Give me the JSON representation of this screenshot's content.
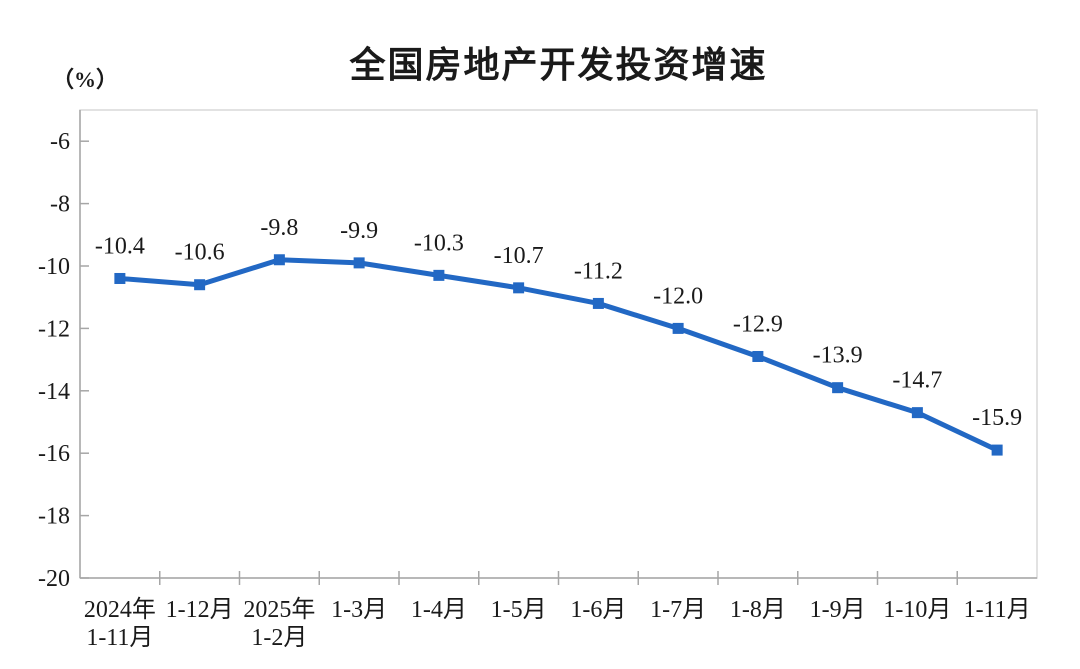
{
  "page": {
    "background": "#ffffff"
  },
  "chart_data": {
    "type": "line",
    "title": "全国房地产开发投资增速",
    "unit_label": "（%）",
    "categories": [
      {
        "line1": "2024年",
        "line2": "1-11月"
      },
      {
        "line1": "1-12月",
        "line2": ""
      },
      {
        "line1": "2025年",
        "line2": "1-2月"
      },
      {
        "line1": "1-3月",
        "line2": ""
      },
      {
        "line1": "1-4月",
        "line2": ""
      },
      {
        "line1": "1-5月",
        "line2": ""
      },
      {
        "line1": "1-6月",
        "line2": ""
      },
      {
        "line1": "1-7月",
        "line2": ""
      },
      {
        "line1": "1-8月",
        "line2": ""
      },
      {
        "line1": "1-9月",
        "line2": ""
      },
      {
        "line1": "1-10月",
        "line2": ""
      },
      {
        "line1": "1-11月",
        "line2": ""
      }
    ],
    "values": [
      -10.4,
      -10.6,
      -9.8,
      -9.9,
      -10.3,
      -10.7,
      -11.2,
      -12.0,
      -12.9,
      -13.9,
      -14.7,
      -15.9
    ],
    "data_labels": [
      "-10.4",
      "-10.6",
      "-9.8",
      "-9.9",
      "-10.3",
      "-10.7",
      "-11.2",
      "-12.0",
      "-12.9",
      "-13.9",
      "-14.7",
      "-15.9"
    ],
    "ylim": [
      -20,
      -5
    ],
    "yticks": [
      -6,
      -8,
      -10,
      -12,
      -14,
      -16,
      -18,
      -20
    ],
    "grid": false,
    "legend": "none",
    "marker_shape": "square",
    "colors": {
      "line": "#2268c4",
      "marker": "#2268c4",
      "axis": "#a6a6a6",
      "plot_border": "#d9d9d9",
      "text": "#1a1a1a"
    }
  }
}
